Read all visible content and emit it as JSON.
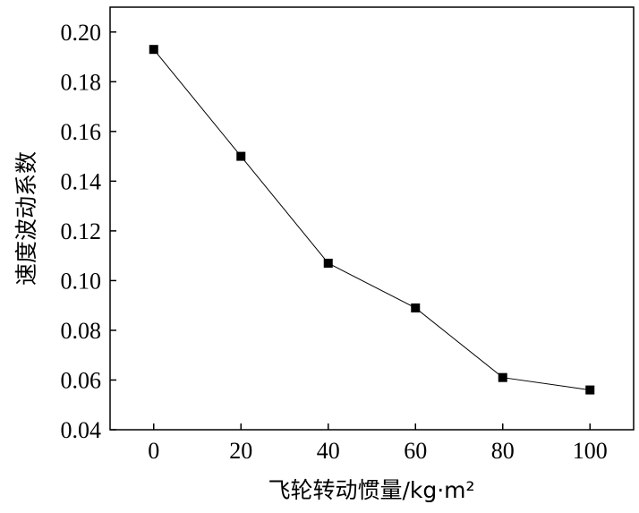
{
  "chart_data": {
    "type": "line",
    "title": "",
    "xlabel": "飞轮转动惯量/kg·m²",
    "ylabel": "速度波动系数",
    "x": [
      0,
      20,
      40,
      60,
      80,
      100
    ],
    "series": [
      {
        "values": [
          0.193,
          0.15,
          0.107,
          0.089,
          0.061,
          0.056
        ]
      }
    ],
    "xlim": [
      -10,
      110
    ],
    "ylim": [
      0.04,
      0.21
    ],
    "xticks": [
      "0",
      "20",
      "40",
      "60",
      "80",
      "100"
    ],
    "yticks": [
      "0.04",
      "0.06",
      "0.08",
      "0.10",
      "0.12",
      "0.14",
      "0.16",
      "0.18",
      "0.20"
    ],
    "grid": false,
    "legend": "none",
    "marker": "square",
    "colors": {
      "line": "#000000",
      "marker": "#000000"
    }
  }
}
